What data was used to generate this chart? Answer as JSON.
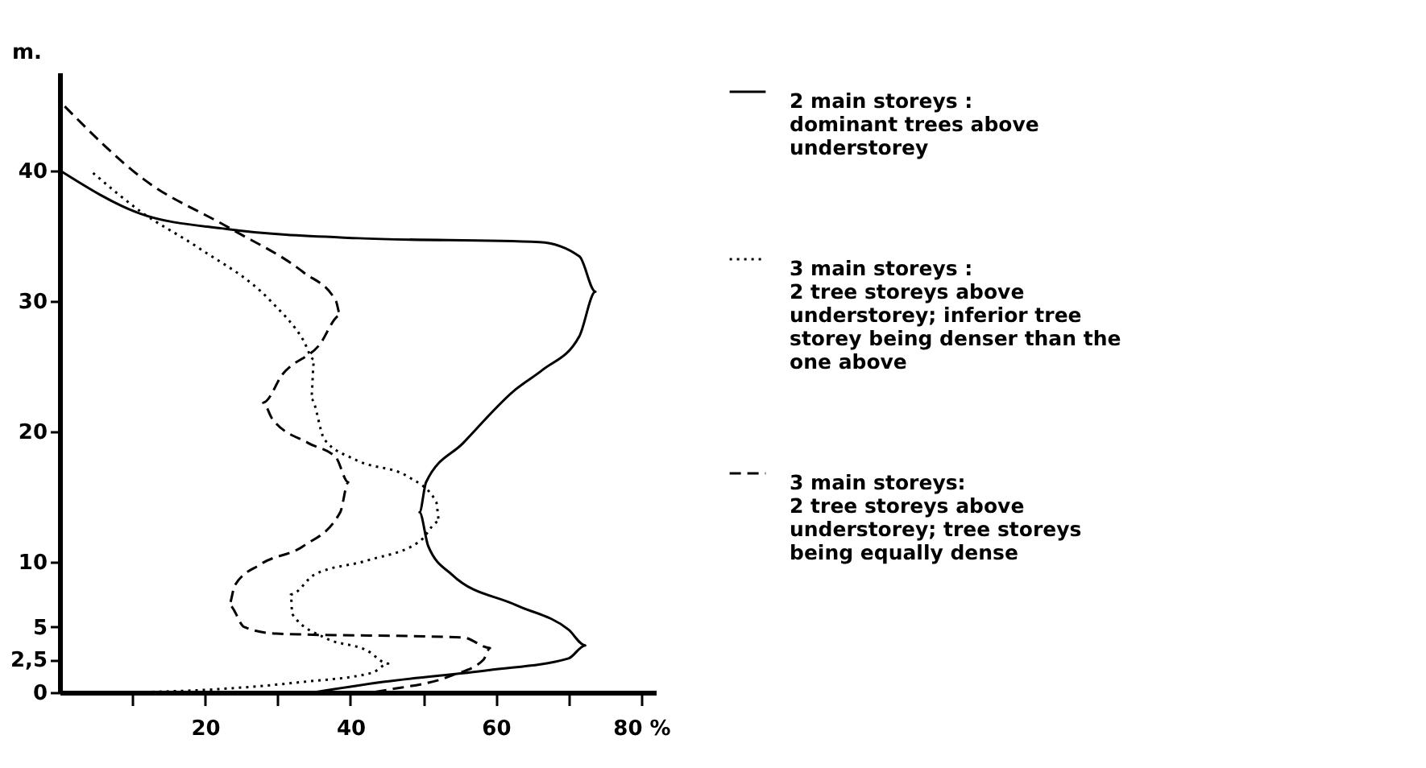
{
  "chart_data": {
    "type": "line",
    "ylabel": "m.",
    "xlim": [
      0,
      82
    ],
    "ylim": [
      0,
      47.5
    ],
    "xticks": [
      {
        "value": 10,
        "label": null
      },
      20,
      {
        "value": 30,
        "label": null
      },
      40,
      {
        "value": 50,
        "label": null
      },
      60,
      {
        "value": 70,
        "label": null
      },
      {
        "value": 80,
        "label": "80 %"
      }
    ],
    "yticks": [
      0,
      {
        "value": 2.5,
        "label": "2,5"
      },
      5,
      10,
      20,
      30,
      40
    ],
    "grid": false,
    "legend": "right",
    "series": [
      {
        "name": "2 main storeys : dominant trees above understorey",
        "color": "#000000",
        "line_style": "solid",
        "x": [
          0,
          11,
          23,
          41,
          66,
          71.5,
          73.7,
          71.5,
          66.4,
          62.7,
          55.5,
          50.4,
          49.5,
          50.7,
          54,
          62.7,
          70,
          72.3,
          70,
          59,
          44.5,
          35
        ],
        "values": [
          40,
          36.7,
          35.5,
          34.8,
          34.5,
          33.4,
          30.7,
          27.3,
          24.7,
          23.2,
          19.1,
          16.1,
          13.8,
          11.2,
          9,
          6.7,
          4.8,
          3.6,
          2.6,
          1.7,
          0.8,
          0
        ]
      },
      {
        "name": "3 main storeys : 2 tree storeys above understorey; inferior tree storey being denser than the one above",
        "color": "#000000",
        "line_style": "dotted",
        "x": [
          4.6,
          11,
          19,
          29,
          33.5,
          35,
          34.6,
          36.4,
          40.8,
          48,
          51.8,
          52.2,
          49.6,
          42.3,
          35,
          31.8,
          32,
          36.4,
          42.3,
          45.2,
          43,
          33.5,
          20.4,
          10
        ],
        "values": [
          39.8,
          36.9,
          34.1,
          30,
          27,
          25.5,
          22.5,
          19.4,
          17.8,
          16.5,
          14.6,
          13.1,
          11.6,
          10.1,
          9,
          7.5,
          6,
          4.2,
          3.2,
          2.2,
          1.5,
          0.8,
          0.2,
          0
        ]
      },
      {
        "name": "3 main storeys: 2 tree storeys above understorey; tree storeys being equally dense",
        "color": "#000000",
        "line_style": "dashed",
        "x": [
          0.7,
          11.6,
          23.3,
          33.5,
          38,
          38.6,
          35.7,
          30.7,
          28,
          29.2,
          34.2,
          38,
          39.7,
          38.6,
          33.5,
          27.6,
          24.1,
          23.3,
          25.4,
          29.8,
          55.5,
          59.2,
          58.3,
          54,
          45.2,
          43
        ],
        "values": [
          44.9,
          39.3,
          35.6,
          32.2,
          30,
          28.9,
          26.6,
          24.4,
          22.2,
          21,
          19.1,
          18,
          16.1,
          13.8,
          11.2,
          9.8,
          8.2,
          6.7,
          5,
          4.5,
          4.2,
          3.4,
          2.5,
          1.3,
          0.2,
          0
        ]
      }
    ]
  }
}
